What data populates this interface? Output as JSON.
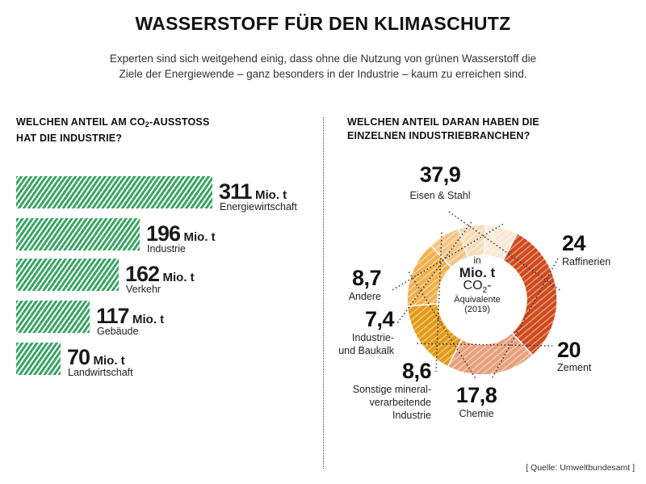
{
  "title": "WASSERSTOFF FÜR DEN KLIMASCHUTZ",
  "subtitle_line1": "Experten sind sich weitgehend einig, dass ohne die Nutzung von grünen Wasserstoff die",
  "subtitle_line2": "Ziele der Energiewende – ganz besonders in der Industrie – kaum zu erreichen sind.",
  "left_heading": {
    "line1_pre": "WELCHEN ANTEIL AM CO",
    "line1_sub": "2",
    "line1_post": "-AUSSTOSS",
    "line2": "HAT DIE INDUSTRIE?"
  },
  "right_heading": {
    "line1": "WELCHEN ANTEIL DARAN HABEN DIE",
    "line2": "EINZELNEN INDUSTRIEBRANCHEN?"
  },
  "source": "[ Quelle: Umweltbundesamt ]",
  "colors": {
    "bar_green": "#3aa464",
    "eisen_stahl": "#cf4a1c",
    "raffinerien": "#e8a07c",
    "zement": "#e39a18",
    "chemie": "#f0b04e",
    "sonstige": "#f3c486",
    "industrie_baukalk": "#f7dcba",
    "andere": "#fae9d6"
  },
  "chart_data": [
    {
      "type": "bar",
      "orientation": "horizontal",
      "unit": "Mio. t",
      "categories": [
        "Energiewirtschaft",
        "Industrie",
        "Verkehr",
        "Gebäude",
        "Landwirtschaft"
      ],
      "values": [
        311,
        196,
        162,
        117,
        70
      ],
      "value_labels": [
        "311",
        "196",
        "162",
        "117",
        "70"
      ],
      "unit_label": "Mio. t",
      "xlim": [
        0,
        311
      ],
      "pattern": "diagonal-hatch",
      "grid": false
    },
    {
      "type": "pie",
      "donut": true,
      "center_text": {
        "in": "in",
        "unit": "Mio. t",
        "co2_pre": "CO",
        "co2_sub": "2",
        "co2_post": "-",
        "aequivalente": "Äquivalente",
        "year": "(2019)"
      },
      "slices": [
        {
          "label": "Eisen & Stahl",
          "value": 37.9,
          "display": "37,9"
        },
        {
          "label": "Raffinerien",
          "value": 24,
          "display": "24"
        },
        {
          "label": "Zement",
          "value": 20,
          "display": "20"
        },
        {
          "label": "Chemie",
          "value": 17.8,
          "display": "17,8"
        },
        {
          "label": "Sonstige mineral-verarbeitende Industrie",
          "label_lines": [
            "Sonstige mineral-",
            "verarbeitende",
            "Industrie"
          ],
          "value": 8.6,
          "display": "8,6"
        },
        {
          "label": "Industrie- und Baukalk",
          "label_lines": [
            "Industrie-",
            "und Baukalk"
          ],
          "value": 7.4,
          "display": "7,4"
        },
        {
          "label": "Andere",
          "value": 8.7,
          "display": "8,7"
        }
      ]
    }
  ]
}
